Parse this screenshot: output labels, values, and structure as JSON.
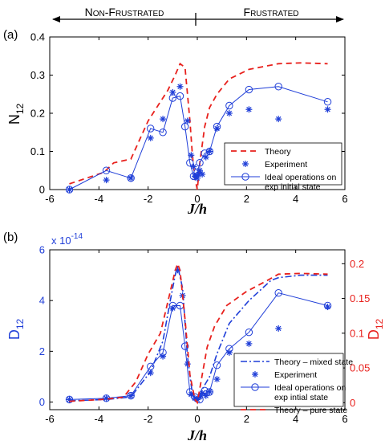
{
  "header": {
    "left_label": "Non-Frustrated",
    "right_label": "Frustrated"
  },
  "chart_data": [
    {
      "type": "line",
      "panel_label": "(a)",
      "xlabel": "J/h",
      "ylabel": "N",
      "ylabel_sub": "12",
      "xlim": [
        -6,
        6
      ],
      "ylim": [
        0,
        0.4
      ],
      "xticks": [
        -6,
        -4,
        -2,
        0,
        2,
        4,
        6
      ],
      "yticks": [
        0,
        0.1,
        0.2,
        0.3,
        0.4
      ],
      "ytick_labels": [
        "0",
        "0.1",
        "0.2",
        "0.3",
        "0.4"
      ],
      "legend_position": "lower-right",
      "series": [
        {
          "name": "Theory",
          "style": "dashed",
          "color": "#e8211d",
          "x": [
            -5.2,
            -3.8,
            -3.4,
            -2.7,
            -2.0,
            -1.6,
            -1.2,
            -0.9,
            -0.7,
            -0.5,
            -0.3,
            -0.2,
            -0.1,
            0.0,
            0.1,
            0.3,
            0.5,
            0.8,
            1.3,
            2.1,
            3.3,
            4.2,
            5.3
          ],
          "y": [
            0.015,
            0.045,
            0.07,
            0.08,
            0.18,
            0.22,
            0.26,
            0.3,
            0.33,
            0.32,
            0.18,
            0.09,
            0.03,
            0.0,
            0.07,
            0.165,
            0.215,
            0.25,
            0.29,
            0.315,
            0.33,
            0.332,
            0.33
          ]
        },
        {
          "name": "Experiment",
          "style": "asterisk",
          "color": "#1f3ed8",
          "x": [
            -5.2,
            -3.7,
            -2.7,
            -1.9,
            -1.4,
            -1.0,
            -0.7,
            -0.4,
            -0.25,
            -0.15,
            -0.1,
            -0.05,
            0.0,
            0.05,
            0.1,
            0.2,
            0.35,
            0.5,
            0.8,
            1.3,
            2.1,
            3.3,
            5.3
          ],
          "y": [
            0.0,
            0.025,
            0.03,
            0.135,
            0.185,
            0.255,
            0.27,
            0.18,
            0.09,
            0.06,
            0.035,
            0.035,
            0.03,
            0.04,
            0.05,
            0.04,
            0.085,
            0.1,
            0.16,
            0.2,
            0.21,
            0.185,
            0.21
          ]
        },
        {
          "name": "Ideal operations on exp initial state",
          "style": "line-circle",
          "color": "#1f3ed8",
          "x": [
            -5.2,
            -3.7,
            -2.7,
            -1.9,
            -1.4,
            -1.0,
            -0.7,
            -0.5,
            -0.3,
            -0.15,
            0.0,
            0.1,
            0.3,
            0.5,
            0.8,
            1.3,
            2.1,
            3.3,
            5.3
          ],
          "y": [
            0.0,
            0.05,
            0.03,
            0.16,
            0.15,
            0.24,
            0.245,
            0.165,
            0.07,
            0.035,
            0.045,
            0.07,
            0.095,
            0.1,
            0.165,
            0.22,
            0.262,
            0.27,
            0.23
          ]
        }
      ]
    },
    {
      "type": "line",
      "panel_label": "(b)",
      "xlabel": "J/h",
      "ylabel_left": "D",
      "ylabel_left_sub": "12",
      "ylabel_right": "D",
      "ylabel_right_sub": "12",
      "xlim": [
        -6,
        6
      ],
      "ylim_left": [
        -0.3,
        6
      ],
      "ylim_right": [
        -0.01,
        0.22
      ],
      "left_multiplier": "x 10",
      "left_multiplier_exp": "-14",
      "xticks": [
        -6,
        -4,
        -2,
        0,
        2,
        4,
        6
      ],
      "yticks_left": [
        0,
        2,
        4,
        6
      ],
      "yticks_right": [
        0,
        0.05,
        0.1,
        0.15,
        0.2
      ],
      "ytick_right_labels": [
        "0",
        "0.05",
        "0.1",
        "0.15",
        "0.2"
      ],
      "left_axis_color": "#1f3ed8",
      "right_axis_color": "#e8211d",
      "legend_position": "lower-right",
      "series": [
        {
          "name": "Theory – mixed state",
          "style": "dashdot",
          "color": "#1f3ed8",
          "axis": "left",
          "x": [
            -5.2,
            -3.7,
            -2.7,
            -1.9,
            -1.4,
            -1.1,
            -0.9,
            -0.8,
            -0.6,
            -0.4,
            -0.2,
            0.0,
            0.2,
            0.5,
            0.8,
            1.3,
            2.1,
            3.0,
            3.3,
            4.2,
            5.3
          ],
          "y": [
            0.05,
            0.1,
            0.2,
            1.2,
            2.4,
            4.0,
            5.0,
            5.35,
            4.5,
            1.8,
            0.3,
            0.0,
            0.5,
            1.0,
            1.9,
            3.1,
            4.0,
            4.8,
            4.9,
            5.0,
            5.0
          ]
        },
        {
          "name": "Experiment",
          "style": "asterisk",
          "color": "#1f3ed8",
          "axis": "left",
          "x": [
            -5.2,
            -3.7,
            -2.7,
            -1.9,
            -1.4,
            -1.0,
            -0.8,
            -0.6,
            -0.4,
            -0.25,
            -0.1,
            0.0,
            0.1,
            0.2,
            0.35,
            0.5,
            0.8,
            1.3,
            2.1,
            3.3,
            5.3
          ],
          "y": [
            0.1,
            0.15,
            0.25,
            1.15,
            1.8,
            3.7,
            5.2,
            4.2,
            1.5,
            0.3,
            0.15,
            0.1,
            0.2,
            0.35,
            0.25,
            0.4,
            0.9,
            1.95,
            2.3,
            2.9,
            3.75
          ]
        },
        {
          "name": "Ideal operations on exp intial state",
          "style": "line-circle",
          "color": "#1f3ed8",
          "axis": "left",
          "x": [
            -5.2,
            -3.7,
            -2.7,
            -1.9,
            -1.4,
            -1.0,
            -0.7,
            -0.5,
            -0.3,
            -0.1,
            0.1,
            0.3,
            0.5,
            0.8,
            1.3,
            2.1,
            3.3,
            5.3
          ],
          "y": [
            0.1,
            0.15,
            0.25,
            1.4,
            1.95,
            3.8,
            3.8,
            2.2,
            0.4,
            0.2,
            0.1,
            0.45,
            0.4,
            1.45,
            2.1,
            2.75,
            4.3,
            3.8
          ]
        },
        {
          "name": "Theory – pure state",
          "style": "dashed",
          "color": "#e8211d",
          "axis": "right",
          "x": [
            -5.2,
            -3.7,
            -3.0,
            -2.5,
            -2.0,
            -1.5,
            -1.1,
            -0.9,
            -0.8,
            -0.7,
            -0.5,
            -0.3,
            -0.1,
            0.0,
            0.2,
            0.4,
            0.7,
            1.2,
            2.0,
            2.8,
            3.3,
            4.2,
            5.3
          ],
          "y": [
            0.002,
            0.005,
            0.008,
            0.03,
            0.07,
            0.1,
            0.16,
            0.19,
            0.2,
            0.19,
            0.12,
            0.04,
            0.005,
            0.0,
            0.04,
            0.08,
            0.11,
            0.14,
            0.16,
            0.175,
            0.185,
            0.186,
            0.185
          ]
        }
      ]
    }
  ]
}
